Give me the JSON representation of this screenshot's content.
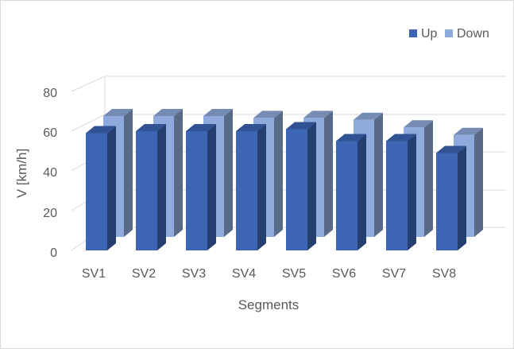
{
  "chart_data": {
    "type": "bar",
    "title": "",
    "xlabel": "Segments",
    "ylabel": "V [km/h]",
    "categories": [
      "SV1",
      "SV2",
      "SV3",
      "SV4",
      "SV5",
      "SV6",
      "SV7",
      "SV8"
    ],
    "series": [
      {
        "name": "Up",
        "values": [
          59,
          60,
          60,
          60,
          61,
          55,
          55,
          49
        ],
        "color": "#3c65b4"
      },
      {
        "name": "Down",
        "values": [
          64,
          64,
          64,
          63,
          63,
          62,
          58,
          54
        ],
        "color": "#8faadc"
      }
    ],
    "ylim": [
      0,
      80
    ],
    "yticks": [
      "0",
      "20",
      "40",
      "60",
      "80"
    ],
    "grid": true,
    "legend_position": "top-right",
    "style": "3d-clustered-column"
  }
}
